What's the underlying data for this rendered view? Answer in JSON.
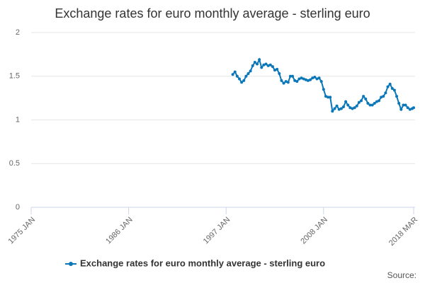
{
  "chart_data": {
    "type": "line",
    "title": "Exchange rates for euro monthly average - sterling euro",
    "source_label": "Source:",
    "x": [
      "1997 OCT",
      "1998 JAN",
      "1998 APR",
      "1998 JUL",
      "1998 OCT",
      "1999 JAN",
      "1999 APR",
      "1999 JUL",
      "1999 OCT",
      "2000 JAN",
      "2000 APR",
      "2000 JUL",
      "2000 OCT",
      "2001 JAN",
      "2001 APR",
      "2001 JUL",
      "2001 OCT",
      "2002 JAN",
      "2002 APR",
      "2002 JUL",
      "2002 OCT",
      "2003 JAN",
      "2003 APR",
      "2003 JUL",
      "2003 OCT",
      "2004 JAN",
      "2004 APR",
      "2004 JUL",
      "2004 OCT",
      "2005 JAN",
      "2005 APR",
      "2005 JUL",
      "2005 OCT",
      "2006 JAN",
      "2006 APR",
      "2006 JUL",
      "2006 OCT",
      "2007 JAN",
      "2007 APR",
      "2007 JUL",
      "2007 OCT",
      "2008 JAN",
      "2008 APR",
      "2008 JUL",
      "2008 OCT",
      "2009 JAN",
      "2009 APR",
      "2009 JUL",
      "2009 OCT",
      "2010 JAN",
      "2010 APR",
      "2010 JUL",
      "2010 OCT",
      "2011 JAN",
      "2011 APR",
      "2011 JUL",
      "2011 OCT",
      "2012 JAN",
      "2012 APR",
      "2012 JUL",
      "2012 OCT",
      "2013 JAN",
      "2013 APR",
      "2013 JUL",
      "2013 OCT",
      "2014 JAN",
      "2014 APR",
      "2014 JUL",
      "2014 OCT",
      "2015 JAN",
      "2015 APR",
      "2015 JUL",
      "2015 OCT",
      "2016 JAN",
      "2016 APR",
      "2016 JUL",
      "2016 OCT",
      "2017 JAN",
      "2017 APR",
      "2017 JUL",
      "2017 OCT",
      "2018 JAN",
      "2018 MAR"
    ],
    "series": [
      {
        "name": "Exchange rates for euro monthly average - sterling euro",
        "color": "#0a77b8",
        "values": [
          1.52,
          1.55,
          1.5,
          1.47,
          1.43,
          1.45,
          1.5,
          1.53,
          1.56,
          1.62,
          1.66,
          1.64,
          1.69,
          1.6,
          1.63,
          1.64,
          1.62,
          1.63,
          1.61,
          1.57,
          1.58,
          1.53,
          1.45,
          1.42,
          1.44,
          1.43,
          1.5,
          1.5,
          1.45,
          1.44,
          1.47,
          1.48,
          1.47,
          1.46,
          1.45,
          1.46,
          1.48,
          1.49,
          1.47,
          1.48,
          1.44,
          1.35,
          1.27,
          1.26,
          1.26,
          1.1,
          1.13,
          1.16,
          1.12,
          1.13,
          1.15,
          1.21,
          1.17,
          1.14,
          1.13,
          1.14,
          1.16,
          1.2,
          1.22,
          1.27,
          1.24,
          1.19,
          1.17,
          1.17,
          1.19,
          1.21,
          1.22,
          1.26,
          1.27,
          1.31,
          1.38,
          1.41,
          1.36,
          1.34,
          1.27,
          1.19,
          1.12,
          1.17,
          1.17,
          1.14,
          1.12,
          1.13,
          1.14
        ]
      }
    ],
    "xlim": [
      "1975 JAN",
      "2018 MAR"
    ],
    "xticks": [
      "1975 JAN",
      "1986 JAN",
      "1997 JAN",
      "2008 JAN",
      "2018 MAR"
    ],
    "ylim": [
      0,
      2
    ],
    "yticks": [
      0,
      0.5,
      1,
      1.5,
      2
    ],
    "grid": true,
    "legend": "bottom"
  }
}
